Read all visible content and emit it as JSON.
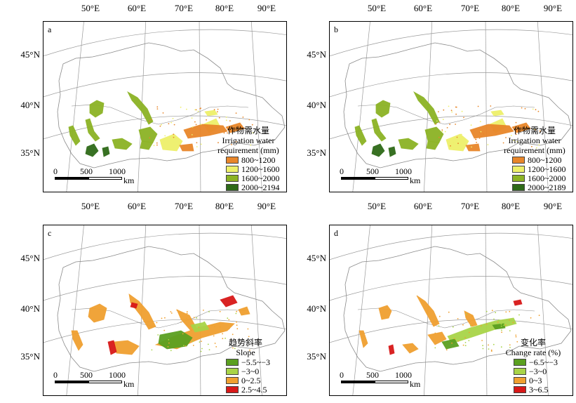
{
  "longitude_labels": [
    "50°E",
    "60°E",
    "70°E",
    "80°E",
    "90°E"
  ],
  "latitude_labels": [
    "45°N",
    "40°N",
    "35°N"
  ],
  "scale_bar": {
    "ticks": [
      "0",
      "500",
      "1000"
    ],
    "unit": "km"
  },
  "panels": [
    {
      "label": "a",
      "legend": {
        "title_cn": "作物需水量",
        "title_en_1": "Irrigation water",
        "title_en_2": "requirement (mm)",
        "items": [
          {
            "label": "800~1200",
            "color": "#e8862a"
          },
          {
            "label": "1200~1600",
            "color": "#eef06a"
          },
          {
            "label": "1600~2000",
            "color": "#8cb324"
          },
          {
            "label": "2000~2194",
            "color": "#2e6a18"
          }
        ]
      }
    },
    {
      "label": "b",
      "legend": {
        "title_cn": "作物需水量",
        "title_en_1": "Irrigation water",
        "title_en_2": "requirement (mm)",
        "items": [
          {
            "label": "800~1200",
            "color": "#e8862a"
          },
          {
            "label": "1200~1600",
            "color": "#eef06a"
          },
          {
            "label": "1600~2000",
            "color": "#8cb324"
          },
          {
            "label": "2000~2189",
            "color": "#2e6a18"
          }
        ]
      }
    },
    {
      "label": "c",
      "legend": {
        "title_cn": "趋势斜率",
        "title_en_1": "Slope",
        "title_en_2": "",
        "items": [
          {
            "label": "−5.5~−3",
            "color": "#5ba020"
          },
          {
            "label": "−3~0",
            "color": "#a8d448"
          },
          {
            "label": "0~2.5",
            "color": "#f0a030"
          },
          {
            "label": "2.5~4.5",
            "color": "#d81818"
          }
        ]
      }
    },
    {
      "label": "d",
      "legend": {
        "title_cn": "变化率",
        "title_en_1": "Change rate (%)",
        "title_en_2": "",
        "items": [
          {
            "label": "−6.5~−3",
            "color": "#5ba020"
          },
          {
            "label": "−3~0",
            "color": "#a8d448"
          },
          {
            "label": "0~3",
            "color": "#f0a030"
          },
          {
            "label": "3~6.5",
            "color": "#d81818"
          }
        ]
      }
    }
  ]
}
